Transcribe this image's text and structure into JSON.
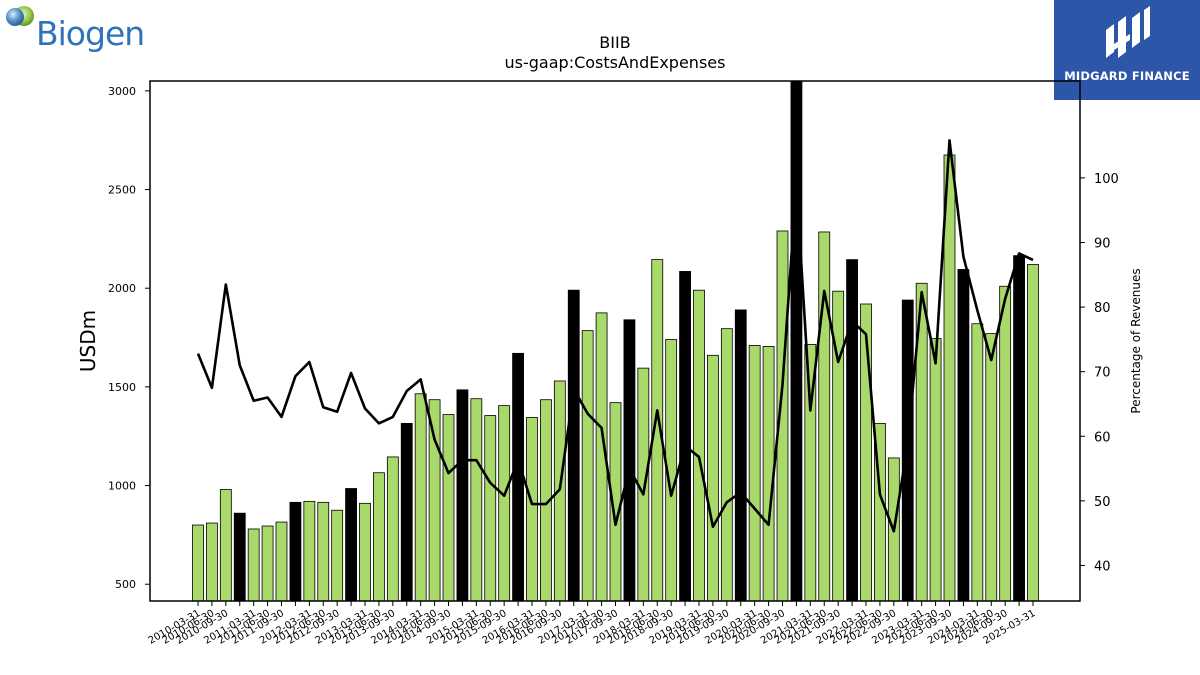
{
  "logos": {
    "left_brand": "Biogen",
    "right_brand": "MIDGARD FINANCE"
  },
  "colors": {
    "bar_regular": "#a8d96a",
    "bar_q4": "#000000",
    "line": "#000000",
    "midgard_bg": "#2d55a8",
    "biogen_text": "#2f74b8"
  },
  "chart_data": {
    "type": "bar",
    "title": "BIIB",
    "subtitle": "us-gaap:CostsAndExpenses",
    "ylabel": "USDm",
    "y2label": "Percentage of Revenues",
    "ylim": [
      415,
      3050
    ],
    "y2lim": [
      34.5,
      115
    ],
    "yticks": [
      500,
      1000,
      1500,
      2000,
      2500,
      3000
    ],
    "y2ticks": [
      40,
      50,
      60,
      70,
      80,
      90,
      100
    ],
    "categories": [
      "2010-03-31",
      "2010-06-30",
      "2010-09-30",
      "2010-12-31",
      "2011-03-31",
      "2011-06-30",
      "2011-09-30",
      "2011-12-31",
      "2012-03-31",
      "2012-06-30",
      "2012-09-30",
      "2012-12-31",
      "2013-03-31",
      "2013-06-30",
      "2013-09-30",
      "2013-12-31",
      "2014-03-31",
      "2014-06-30",
      "2014-09-30",
      "2014-12-31",
      "2015-03-31",
      "2015-06-30",
      "2015-09-30",
      "2015-12-31",
      "2016-03-31",
      "2016-06-30",
      "2016-09-30",
      "2016-12-31",
      "2017-03-31",
      "2017-06-30",
      "2017-09-30",
      "2017-12-31",
      "2018-03-31",
      "2018-06-30",
      "2018-09-30",
      "2018-12-31",
      "2019-03-31",
      "2019-06-30",
      "2019-09-30",
      "2019-12-31",
      "2020-03-31",
      "2020-06-30",
      "2020-09-30",
      "2020-12-31",
      "2021-03-31",
      "2021-06-30",
      "2021-09-30",
      "2021-12-31",
      "2022-03-31",
      "2022-06-30",
      "2022-09-30",
      "2022-12-31",
      "2023-03-31",
      "2023-06-30",
      "2023-09-30",
      "2023-12-31",
      "2024-03-31",
      "2024-06-30",
      "2024-09-30",
      "2024-12-31",
      "2025-03-31"
    ],
    "x_tick_labels_shown": [
      "2010-03-31",
      "2010-06-30",
      "2010-09-30",
      "2011-03-31",
      "2011-06-30",
      "2011-09-30",
      "2012-03-31",
      "2012-06-30",
      "2012-09-30",
      "2013-03-31",
      "2013-06-30",
      "2013-09-30",
      "2014-03-31",
      "2014-06-30",
      "2014-09-30",
      "2015-03-31",
      "2015-06-30",
      "2015-09-30",
      "2016-03-31",
      "2016-06-30",
      "2016-09-30",
      "2017-03-31",
      "2017-06-30",
      "2017-09-30",
      "2018-03-31",
      "2018-06-30",
      "2018-09-30",
      "2019-03-31",
      "2019-06-30",
      "2019-09-30",
      "2020-03-31",
      "2020-06-30",
      "2020-09-30",
      "2021-03-31",
      "2021-06-30",
      "2021-09-30",
      "2022-03-31",
      "2022-06-30",
      "2022-09-30",
      "2023-03-31",
      "2023-06-30",
      "2023-09-30",
      "2024-03-31",
      "2024-06-30",
      "2024-09-30",
      "2025-03-31"
    ],
    "series": [
      {
        "name": "CostsAndExpenses",
        "type": "bar",
        "axis": "left",
        "values": [
          800,
          810,
          980,
          860,
          780,
          795,
          815,
          915,
          920,
          915,
          875,
          985,
          910,
          1065,
          1145,
          1315,
          1465,
          1435,
          1360,
          1485,
          1440,
          1355,
          1405,
          1670,
          1345,
          1435,
          1530,
          1990,
          1785,
          1875,
          1420,
          1840,
          1595,
          2145,
          1740,
          2085,
          1990,
          1660,
          1795,
          1890,
          1710,
          1705,
          2290,
          3050,
          1715,
          2285,
          1985,
          2145,
          1920,
          1315,
          1140,
          1940,
          2025,
          1745,
          2675,
          2095,
          1820,
          1770,
          2010,
          2165,
          2120
        ]
      },
      {
        "name": "Percentage of Revenues",
        "type": "line",
        "axis": "right",
        "values": [
          72.8,
          67.5,
          83.5,
          71.0,
          65.5,
          66.0,
          63.0,
          69.3,
          71.5,
          64.5,
          63.8,
          69.8,
          64.3,
          62.0,
          63.0,
          67.0,
          68.8,
          59.5,
          54.3,
          56.3,
          56.3,
          52.8,
          50.8,
          56.3,
          49.5,
          49.5,
          51.8,
          67.3,
          63.5,
          61.3,
          46.3,
          55.0,
          51.0,
          64.0,
          50.8,
          58.5,
          56.8,
          46.0,
          49.8,
          51.3,
          48.8,
          46.3,
          68.0,
          99.0,
          64.0,
          82.5,
          71.5,
          77.8,
          75.8,
          51.0,
          45.3,
          58.8,
          82.3,
          71.3,
          105.8,
          87.8,
          79.5,
          71.8,
          81.3,
          88.3,
          87.3
        ]
      }
    ],
    "grid": false,
    "legend": "none"
  }
}
